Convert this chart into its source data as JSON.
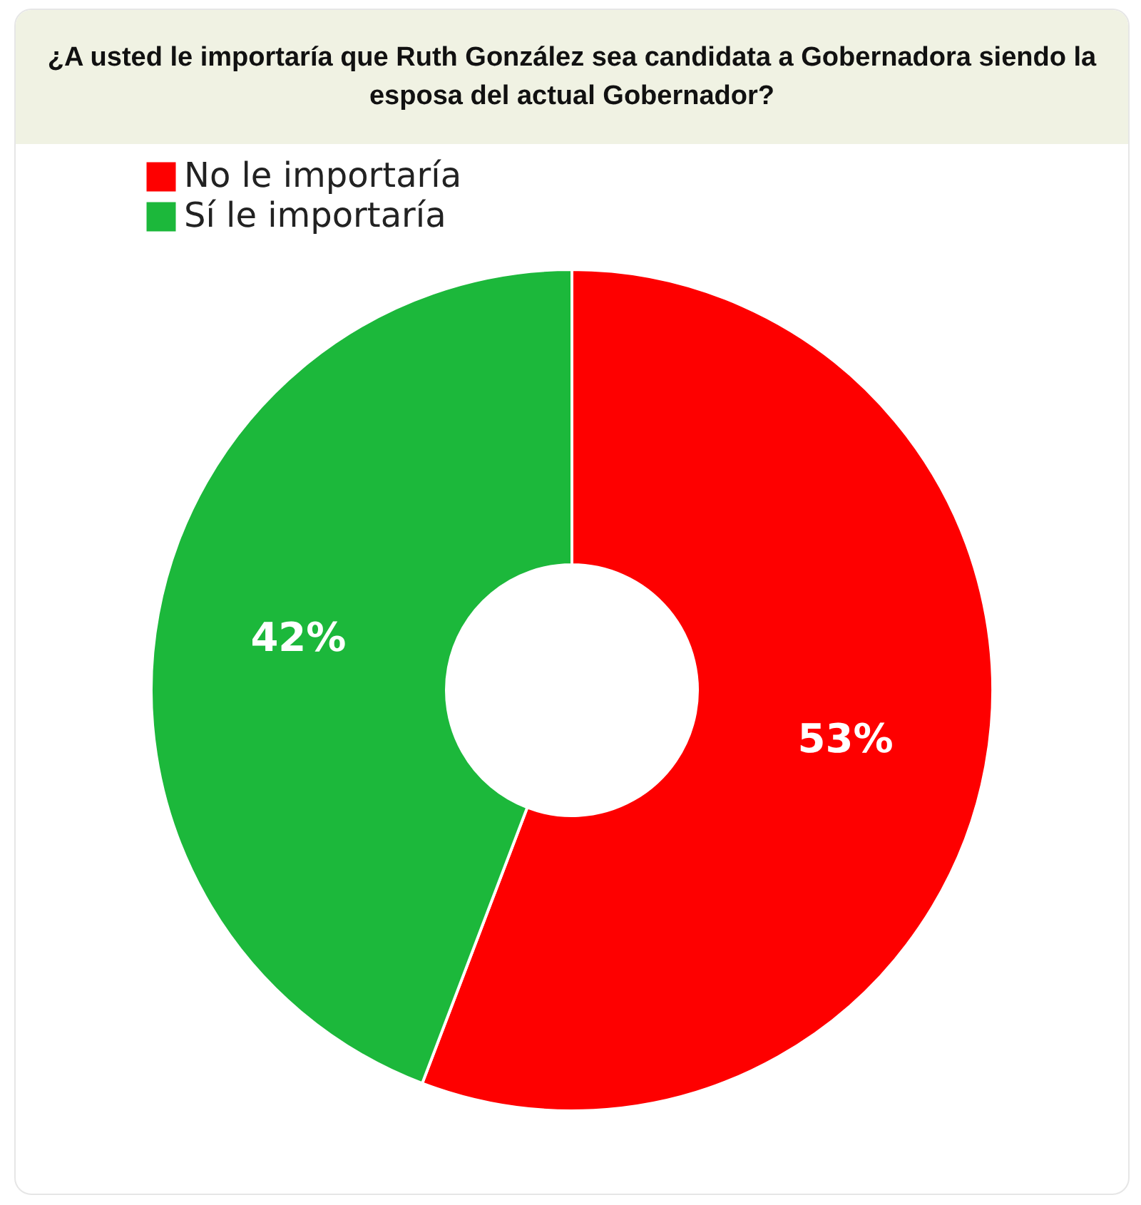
{
  "chart_data": {
    "type": "donut",
    "title": "¿A usted le importaría que Ruth González sea candidata a Gobernadora siendo la esposa del actual Gobernador?",
    "categories": [
      "No le importaría",
      "Sí le importaría"
    ],
    "values": [
      53,
      42
    ],
    "colors": [
      "#fe0000",
      "#1cb83b"
    ],
    "value_labels": [
      "53%",
      "42%"
    ],
    "legend": "top"
  }
}
